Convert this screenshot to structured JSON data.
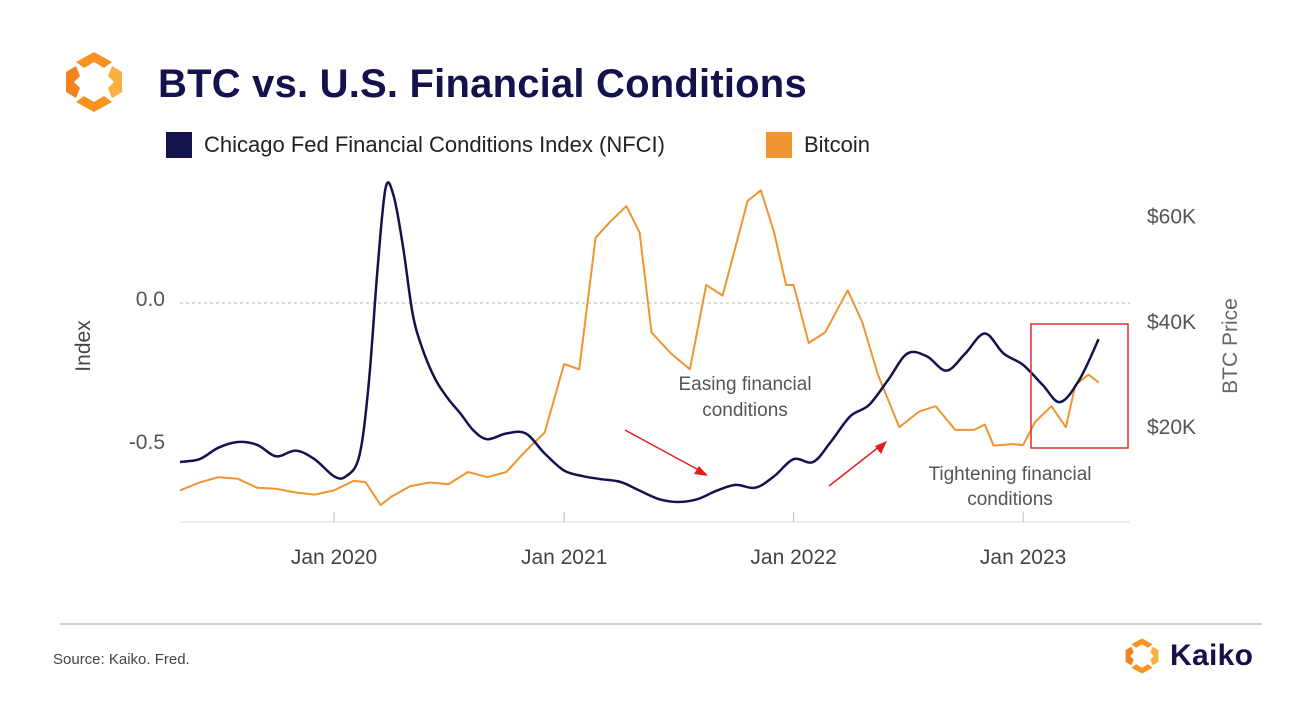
{
  "header": {
    "title": "BTC vs. U.S. Financial Conditions"
  },
  "footer": {
    "source": "Source: Kaiko. Fred.",
    "brand": "Kaiko"
  },
  "colors": {
    "nfci": "#14124d",
    "bitcoin": "#f0952f",
    "logo": "#f7931e",
    "annotation_arrow": "#e02020",
    "highlight_box": "#d93030"
  },
  "chart_data": {
    "type": "line",
    "title": "BTC vs. U.S. Financial Conditions",
    "x_axis": {
      "ticks": [
        "2020-01-01",
        "2021-01-01",
        "2022-01-01",
        "2023-01-01"
      ],
      "tick_labels": [
        "Jan 2020",
        "Jan 2021",
        "Jan 2022",
        "Jan 2023"
      ],
      "range": [
        "2019-05-01",
        "2023-06-20"
      ]
    },
    "y_axis_left": {
      "label": "Index",
      "tick_values": [
        0.0,
        -0.5
      ],
      "tick_labels": [
        "0.0",
        "-0.5"
      ],
      "range": [
        -0.78,
        0.4
      ],
      "reference_line": 0.0
    },
    "y_axis_right": {
      "label": "BTC Price",
      "tick_values": [
        60000,
        40000,
        20000
      ],
      "tick_labels": [
        "$60K",
        "$40K",
        "$20K"
      ],
      "range": [
        2000,
        66000
      ]
    },
    "legend_position": "top-left",
    "series": [
      {
        "name": "Chicago Fed Financial Conditions Index (NFCI)",
        "axis": "left",
        "color": "#14124d",
        "points": [
          [
            "2019-05-01",
            -0.57
          ],
          [
            "2019-06-01",
            -0.56
          ],
          [
            "2019-07-01",
            -0.52
          ],
          [
            "2019-08-01",
            -0.5
          ],
          [
            "2019-09-01",
            -0.51
          ],
          [
            "2019-10-01",
            -0.55
          ],
          [
            "2019-11-01",
            -0.53
          ],
          [
            "2019-12-01",
            -0.56
          ],
          [
            "2020-01-01",
            -0.62
          ],
          [
            "2020-01-20",
            -0.62
          ],
          [
            "2020-02-10",
            -0.55
          ],
          [
            "2020-02-25",
            -0.3
          ],
          [
            "2020-03-10",
            0.1
          ],
          [
            "2020-03-23",
            0.39
          ],
          [
            "2020-04-05",
            0.36
          ],
          [
            "2020-04-20",
            0.18
          ],
          [
            "2020-05-05",
            -0.05
          ],
          [
            "2020-05-20",
            -0.17
          ],
          [
            "2020-06-10",
            -0.28
          ],
          [
            "2020-07-01",
            -0.35
          ],
          [
            "2020-07-20",
            -0.4
          ],
          [
            "2020-08-10",
            -0.46
          ],
          [
            "2020-09-01",
            -0.49
          ],
          [
            "2020-10-01",
            -0.47
          ],
          [
            "2020-11-01",
            -0.47
          ],
          [
            "2020-12-01",
            -0.54
          ],
          [
            "2021-01-01",
            -0.6
          ],
          [
            "2021-02-01",
            -0.62
          ],
          [
            "2021-03-01",
            -0.63
          ],
          [
            "2021-04-01",
            -0.64
          ],
          [
            "2021-05-01",
            -0.67
          ],
          [
            "2021-06-01",
            -0.7
          ],
          [
            "2021-07-01",
            -0.71
          ],
          [
            "2021-08-01",
            -0.7
          ],
          [
            "2021-09-01",
            -0.67
          ],
          [
            "2021-10-01",
            -0.65
          ],
          [
            "2021-11-01",
            -0.66
          ],
          [
            "2021-12-01",
            -0.62
          ],
          [
            "2022-01-01",
            -0.56
          ],
          [
            "2022-02-01",
            -0.57
          ],
          [
            "2022-03-01",
            -0.5
          ],
          [
            "2022-04-01",
            -0.41
          ],
          [
            "2022-05-01",
            -0.37
          ],
          [
            "2022-06-01",
            -0.28
          ],
          [
            "2022-07-01",
            -0.19
          ],
          [
            "2022-08-01",
            -0.2
          ],
          [
            "2022-09-01",
            -0.25
          ],
          [
            "2022-10-01",
            -0.19
          ],
          [
            "2022-11-01",
            -0.12
          ],
          [
            "2022-12-01",
            -0.19
          ],
          [
            "2023-01-01",
            -0.23
          ],
          [
            "2023-02-01",
            -0.3
          ],
          [
            "2023-03-01",
            -0.36
          ],
          [
            "2023-04-01",
            -0.28
          ],
          [
            "2023-05-01",
            -0.14
          ]
        ]
      },
      {
        "name": "Bitcoin",
        "axis": "right",
        "color": "#f0952f",
        "points": [
          [
            "2019-05-01",
            8000
          ],
          [
            "2019-06-01",
            9500
          ],
          [
            "2019-07-01",
            10500
          ],
          [
            "2019-08-01",
            10200
          ],
          [
            "2019-09-01",
            8500
          ],
          [
            "2019-10-01",
            8300
          ],
          [
            "2019-11-01",
            7600
          ],
          [
            "2019-12-01",
            7200
          ],
          [
            "2020-01-01",
            8000
          ],
          [
            "2020-02-01",
            9800
          ],
          [
            "2020-02-20",
            9600
          ],
          [
            "2020-03-15",
            5200
          ],
          [
            "2020-04-01",
            6800
          ],
          [
            "2020-05-01",
            8800
          ],
          [
            "2020-06-01",
            9500
          ],
          [
            "2020-07-01",
            9200
          ],
          [
            "2020-08-01",
            11500
          ],
          [
            "2020-09-01",
            10500
          ],
          [
            "2020-10-01",
            11500
          ],
          [
            "2020-11-01",
            15500
          ],
          [
            "2020-12-01",
            19000
          ],
          [
            "2021-01-01",
            32000
          ],
          [
            "2021-01-25",
            31000
          ],
          [
            "2021-02-20",
            56000
          ],
          [
            "2021-03-15",
            59000
          ],
          [
            "2021-04-10",
            62000
          ],
          [
            "2021-05-01",
            57000
          ],
          [
            "2021-05-20",
            38000
          ],
          [
            "2021-06-20",
            34000
          ],
          [
            "2021-07-20",
            31000
          ],
          [
            "2021-08-15",
            47000
          ],
          [
            "2021-09-10",
            45000
          ],
          [
            "2021-10-20",
            63000
          ],
          [
            "2021-11-10",
            65000
          ],
          [
            "2021-12-01",
            57000
          ],
          [
            "2021-12-20",
            47000
          ],
          [
            "2022-01-01",
            47000
          ],
          [
            "2022-01-25",
            36000
          ],
          [
            "2022-02-20",
            38000
          ],
          [
            "2022-03-28",
            46000
          ],
          [
            "2022-04-20",
            40000
          ],
          [
            "2022-05-15",
            30000
          ],
          [
            "2022-06-18",
            20000
          ],
          [
            "2022-07-20",
            23000
          ],
          [
            "2022-08-15",
            24000
          ],
          [
            "2022-09-15",
            19500
          ],
          [
            "2022-10-15",
            19500
          ],
          [
            "2022-11-01",
            20500
          ],
          [
            "2022-11-15",
            16500
          ],
          [
            "2022-12-15",
            16800
          ],
          [
            "2023-01-01",
            16600
          ],
          [
            "2023-01-20",
            21000
          ],
          [
            "2023-02-15",
            24000
          ],
          [
            "2023-03-10",
            20000
          ],
          [
            "2023-03-25",
            28000
          ],
          [
            "2023-04-15",
            30000
          ],
          [
            "2023-05-01",
            28500
          ]
        ]
      }
    ],
    "annotations": [
      {
        "text_lines": [
          "Easing financial",
          "conditions"
        ],
        "arrow": true
      },
      {
        "text_lines": [
          "Tightening financial",
          "conditions"
        ],
        "arrow": true
      },
      {
        "type": "highlight_box",
        "from": "2023-01-01",
        "to": "2023-05-15"
      }
    ]
  }
}
